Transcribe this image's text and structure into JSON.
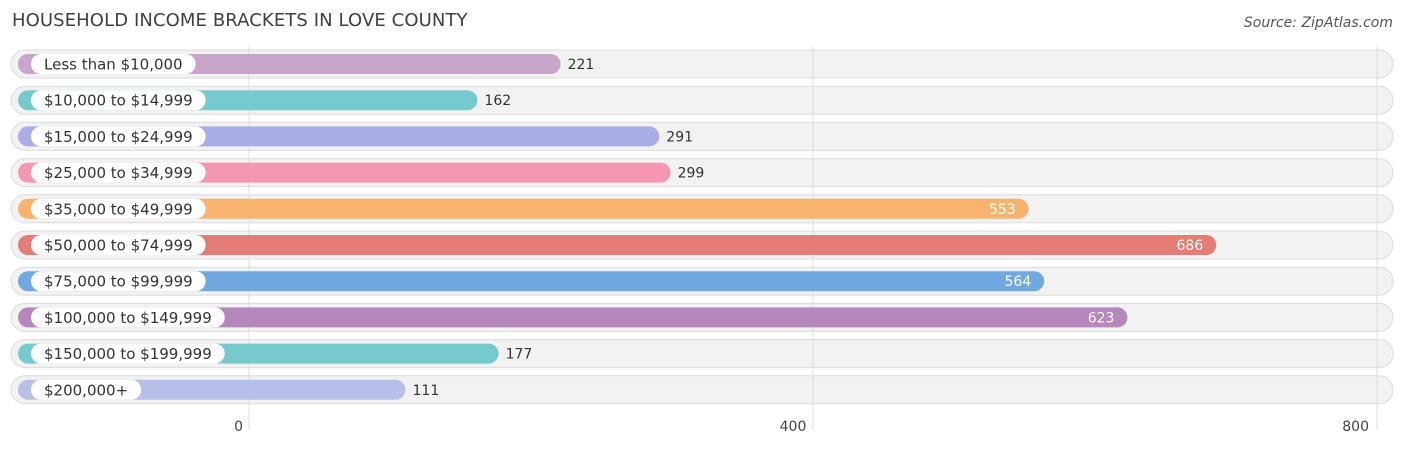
{
  "header": {
    "title": "HOUSEHOLD INCOME BRACKETS IN LOVE COUNTY",
    "source": "Source: ZipAtlas.com"
  },
  "chart_data": {
    "type": "bar",
    "orientation": "horizontal",
    "title": "HOUSEHOLD INCOME BRACKETS IN LOVE COUNTY",
    "xlabel": "",
    "ylabel": "",
    "xlim": [
      0,
      800
    ],
    "ticks": [
      0,
      400,
      800
    ],
    "tick_labels": [
      "0",
      "400",
      "800"
    ],
    "grid": true,
    "categories": [
      "Less than $10,000",
      "$10,000 to $14,999",
      "$15,000 to $24,999",
      "$25,000 to $34,999",
      "$35,000 to $49,999",
      "$50,000 to $74,999",
      "$75,000 to $99,999",
      "$100,000 to $149,999",
      "$150,000 to $199,999",
      "$200,000+"
    ],
    "values": [
      221,
      162,
      291,
      299,
      553,
      686,
      564,
      623,
      177,
      111
    ],
    "value_labels": [
      "221",
      "162",
      "291",
      "299",
      "553",
      "686",
      "564",
      "623",
      "177",
      "111"
    ],
    "colors": [
      "#c9a5cc",
      "#76c9cc",
      "#a9ade6",
      "#f597b3",
      "#f8b36e",
      "#e57c76",
      "#72a8e0",
      "#b687bd",
      "#76c9cc",
      "#b8c0ea"
    ]
  }
}
